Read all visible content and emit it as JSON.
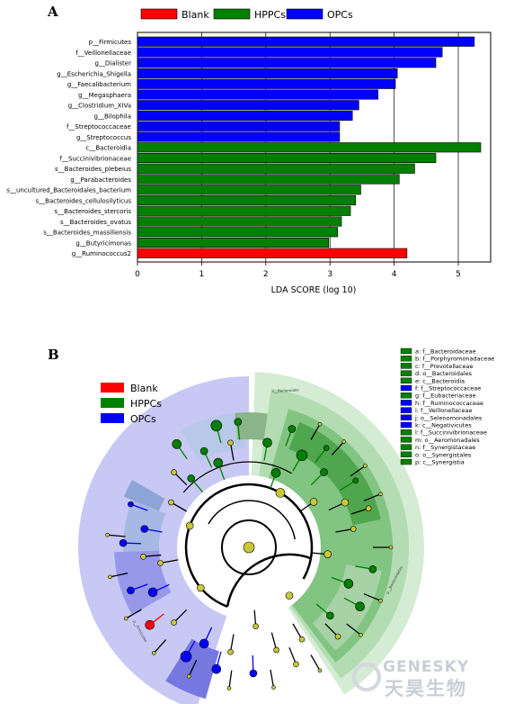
{
  "panel_a_label": "A",
  "panel_b_label": "B",
  "legend": [
    {
      "name": "Blank",
      "color": "#ff0000"
    },
    {
      "name": "HPPCs",
      "color": "#008000"
    },
    {
      "name": "OPCs",
      "color": "#0000ff"
    }
  ],
  "chart_data": {
    "type": "bar",
    "orientation": "horizontal",
    "xlabel": "LDA SCORE (log 10)",
    "xlim": [
      0,
      5.5
    ],
    "xticks": [
      0,
      1,
      2,
      3,
      4,
      5
    ],
    "grid": "vertical",
    "categories": [
      "p__Firmicutes",
      "f__Veillonellaceae",
      "g__Dialister",
      "g__Escherichia_Shigella",
      "g__Faecalibacterium",
      "g__Megasphaera",
      "g__Clostridium_XIVa",
      "g__Bilophila",
      "f__Streptococcaceae",
      "g__Streptococcus",
      "c__Bacteroidia",
      "f__Succinivibrionaceae",
      "s__Bacteroides_plebeius",
      "g__Parabacteroides",
      "s__uncultured_Bacteroidales_bacterium",
      "s__Bacteroides_cellulosilyticus",
      "s__Bacteroides_stercoris",
      "s__Bacteroides_ovatus",
      "s__Bacteroides_massiliensis",
      "g__Butyricimonas",
      "g__Ruminococcus2"
    ],
    "values": [
      5.25,
      4.75,
      4.65,
      4.05,
      4.02,
      3.75,
      3.45,
      3.35,
      3.15,
      3.15,
      5.35,
      4.65,
      4.32,
      4.08,
      3.48,
      3.4,
      3.32,
      3.18,
      3.12,
      2.98,
      4.2
    ],
    "groups": [
      "OPCs",
      "OPCs",
      "OPCs",
      "OPCs",
      "OPCs",
      "OPCs",
      "OPCs",
      "OPCs",
      "OPCs",
      "OPCs",
      "HPPCs",
      "HPPCs",
      "HPPCs",
      "HPPCs",
      "HPPCs",
      "HPPCs",
      "HPPCs",
      "HPPCs",
      "HPPCs",
      "HPPCs",
      "Blank"
    ]
  },
  "cladogram": {
    "legend": [
      {
        "name": "Blank",
        "color": "#ff0000"
      },
      {
        "name": "HPPCs",
        "color": "#008000"
      },
      {
        "name": "OPCs",
        "color": "#0000ff"
      }
    ],
    "key": [
      {
        "text": "a: f__Bacteroidaceae",
        "color": "#008000"
      },
      {
        "text": "b: f__Porphyromonadaceae",
        "color": "#008000"
      },
      {
        "text": "c: f__Prevotellaceae",
        "color": "#008000"
      },
      {
        "text": "d: o__Bacteroidales",
        "color": "#008000"
      },
      {
        "text": "e: c__Bacteroidia",
        "color": "#008000"
      },
      {
        "text": "f: f__Streptococcaceae",
        "color": "#0000ff"
      },
      {
        "text": "g: f__Eubacteriaceae",
        "color": "#008000"
      },
      {
        "text": "h: f__Ruminococcaceae",
        "color": "#0000ff"
      },
      {
        "text": "i: f__Veillonellaceae",
        "color": "#0000ff"
      },
      {
        "text": "j: o__Selenomonadales",
        "color": "#0000ff"
      },
      {
        "text": "k: c__Negativicutes",
        "color": "#0000ff"
      },
      {
        "text": "l: f__Succinivibrionaceae",
        "color": "#008000"
      },
      {
        "text": "m: o__Aeromonadales",
        "color": "#008000"
      },
      {
        "text": "n: f__Synergistaceae",
        "color": "#008000"
      },
      {
        "text": "o: o__Synergistales",
        "color": "#008000"
      },
      {
        "text": "p: c__Synergistia",
        "color": "#008000"
      }
    ],
    "ring_labels": [
      "s__Bacteroides",
      "p__Firmicutes",
      "p__Bacteroidetes"
    ],
    "node_colors": {
      "blank": "#ff0000",
      "hppcs": "#008000",
      "opcs": "#0000ff",
      "neutral": "#c8c83a"
    }
  },
  "watermark": {
    "line1": "GENESKY",
    "line2": "天昊生物"
  }
}
